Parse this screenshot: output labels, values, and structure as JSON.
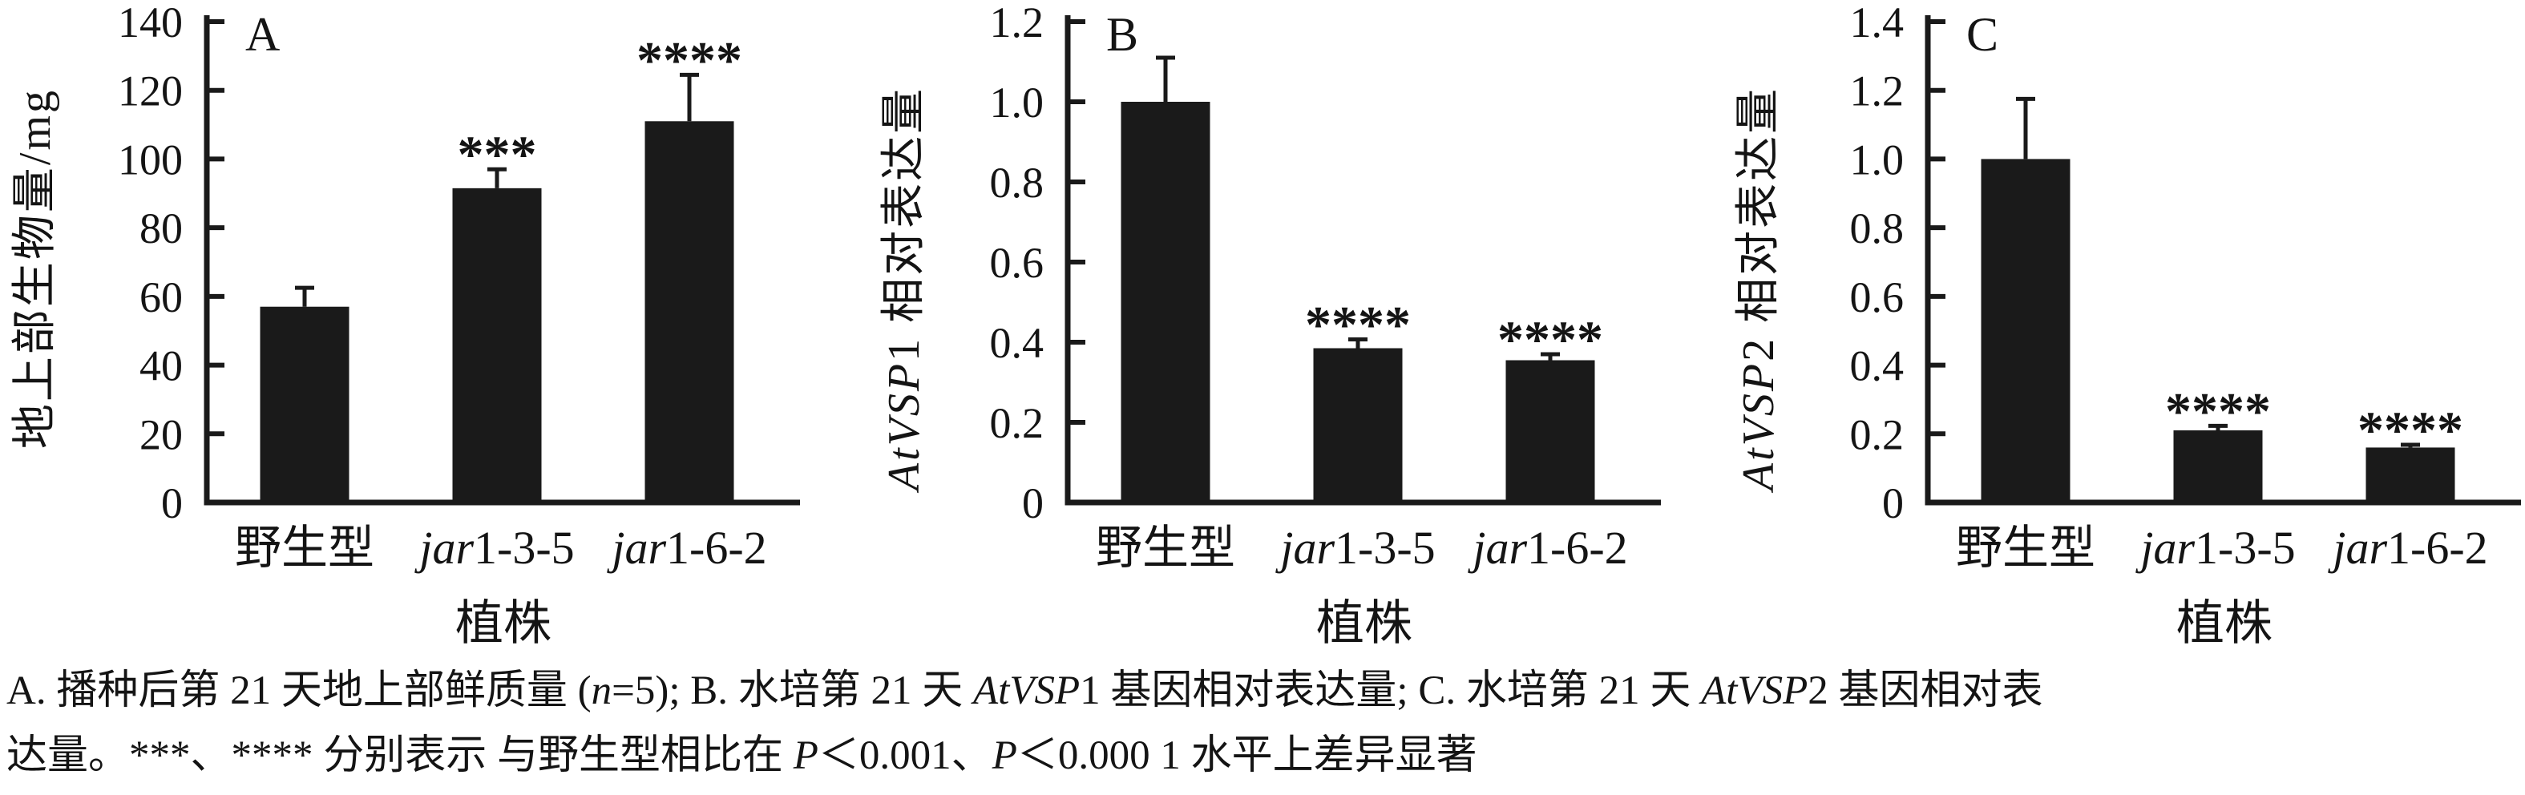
{
  "colors": {
    "bar": "#1a1a1a",
    "axis": "#1a1a1a",
    "text": "#141414",
    "background": "#ffffff"
  },
  "figure_caption": {
    "line1_segments": [
      {
        "t": "A. 播种后第 21 天地上部鲜质量 (",
        "i": false
      },
      {
        "t": "n",
        "i": true
      },
      {
        "t": "=5); B. 水培第 21 天 ",
        "i": false
      },
      {
        "t": "AtVSP",
        "i": true
      },
      {
        "t": "1 基因相对表达量; C. 水培第 21 天 ",
        "i": false
      },
      {
        "t": "AtVSP",
        "i": true
      },
      {
        "t": "2 基因相对表",
        "i": false
      }
    ],
    "line2_segments": [
      {
        "t": "达量。***、**** 分别表示 与野生型相比在 ",
        "i": false
      },
      {
        "t": "P",
        "i": true
      },
      {
        "t": "＜0.001、",
        "i": false
      },
      {
        "t": "P",
        "i": true
      },
      {
        "t": "＜0.000 1 水平上差异显著",
        "i": false
      }
    ]
  },
  "chart_data": [
    {
      "type": "bar",
      "panel_letter": "A",
      "title": "A",
      "ylabel": "地上部生物量/mg",
      "ylabel_segments": [
        {
          "t": "地上部生物量/mg",
          "i": false
        }
      ],
      "xlabel": "植株",
      "categories_plain": [
        "野生型",
        "jar1-3-5",
        "jar1-6-2"
      ],
      "categories": [
        [
          {
            "t": "野生型",
            "i": false
          }
        ],
        [
          {
            "t": "jar",
            "i": true
          },
          {
            "t": "1-3-5",
            "i": false
          }
        ],
        [
          {
            "t": "jar",
            "i": true
          },
          {
            "t": "1-6-2",
            "i": false
          }
        ]
      ],
      "values": [
        57,
        91.5,
        111
      ],
      "errors": [
        5.5,
        5.5,
        13.5
      ],
      "significance": [
        "",
        "***",
        "****"
      ],
      "ylim": [
        0,
        140
      ],
      "ytick_labels": [
        "0",
        "20",
        "40",
        "60",
        "80",
        "100",
        "120",
        "140"
      ],
      "grid": false,
      "legend": "none",
      "layout": {
        "axis_x": 258,
        "ylabel_x": 62,
        "ylabel_mid_y": 335
      }
    },
    {
      "type": "bar",
      "panel_letter": "B",
      "title": "B",
      "ylabel": "AtVSP1 相对表达量",
      "ylabel_segments": [
        {
          "t": "AtVSP",
          "i": true
        },
        {
          "t": "1 相对表达量",
          "i": false
        }
      ],
      "xlabel": "植株",
      "categories_plain": [
        "野生型",
        "jar1-3-5",
        "jar1-6-2"
      ],
      "categories": [
        [
          {
            "t": "野生型",
            "i": false
          }
        ],
        [
          {
            "t": "jar",
            "i": true
          },
          {
            "t": "1-3-5",
            "i": false
          }
        ],
        [
          {
            "t": "jar",
            "i": true
          },
          {
            "t": "1-6-2",
            "i": false
          }
        ]
      ],
      "values": [
        1.0,
        0.385,
        0.355
      ],
      "errors": [
        0.11,
        0.022,
        0.015
      ],
      "significance": [
        "",
        "****",
        "****"
      ],
      "ylim": [
        0,
        1.2
      ],
      "ytick_labels": [
        "0",
        "0.2",
        "0.4",
        "0.6",
        "0.8",
        "1.0",
        "1.2"
      ],
      "grid": false,
      "legend": "none",
      "layout": {
        "axis_x": 282,
        "ylabel_x": 96,
        "ylabel_mid_y": 360
      }
    },
    {
      "type": "bar",
      "panel_letter": "C",
      "title": "C",
      "ylabel": "AtVSP2 相对表达量",
      "ylabel_segments": [
        {
          "t": "AtVSP",
          "i": true
        },
        {
          "t": "2 相对表达量",
          "i": false
        }
      ],
      "xlabel": "植株",
      "categories_plain": [
        "野生型",
        "jar1-3-5",
        "jar1-6-2"
      ],
      "categories": [
        [
          {
            "t": "野生型",
            "i": false
          }
        ],
        [
          {
            "t": "jar",
            "i": true
          },
          {
            "t": "1-3-5",
            "i": false
          }
        ],
        [
          {
            "t": "jar",
            "i": true
          },
          {
            "t": "1-6-2",
            "i": false
          }
        ]
      ],
      "values": [
        1.0,
        0.21,
        0.16
      ],
      "errors": [
        0.175,
        0.013,
        0.008
      ],
      "significance": [
        "",
        "****",
        "****"
      ],
      "ylim": [
        0,
        1.4
      ],
      "ytick_labels": [
        "0",
        "0.2",
        "0.4",
        "0.6",
        "0.8",
        "1.0",
        "1.2",
        "1.4"
      ],
      "grid": false,
      "legend": "none",
      "layout": {
        "axis_x": 305,
        "ylabel_x": 112,
        "ylabel_mid_y": 360
      }
    }
  ]
}
